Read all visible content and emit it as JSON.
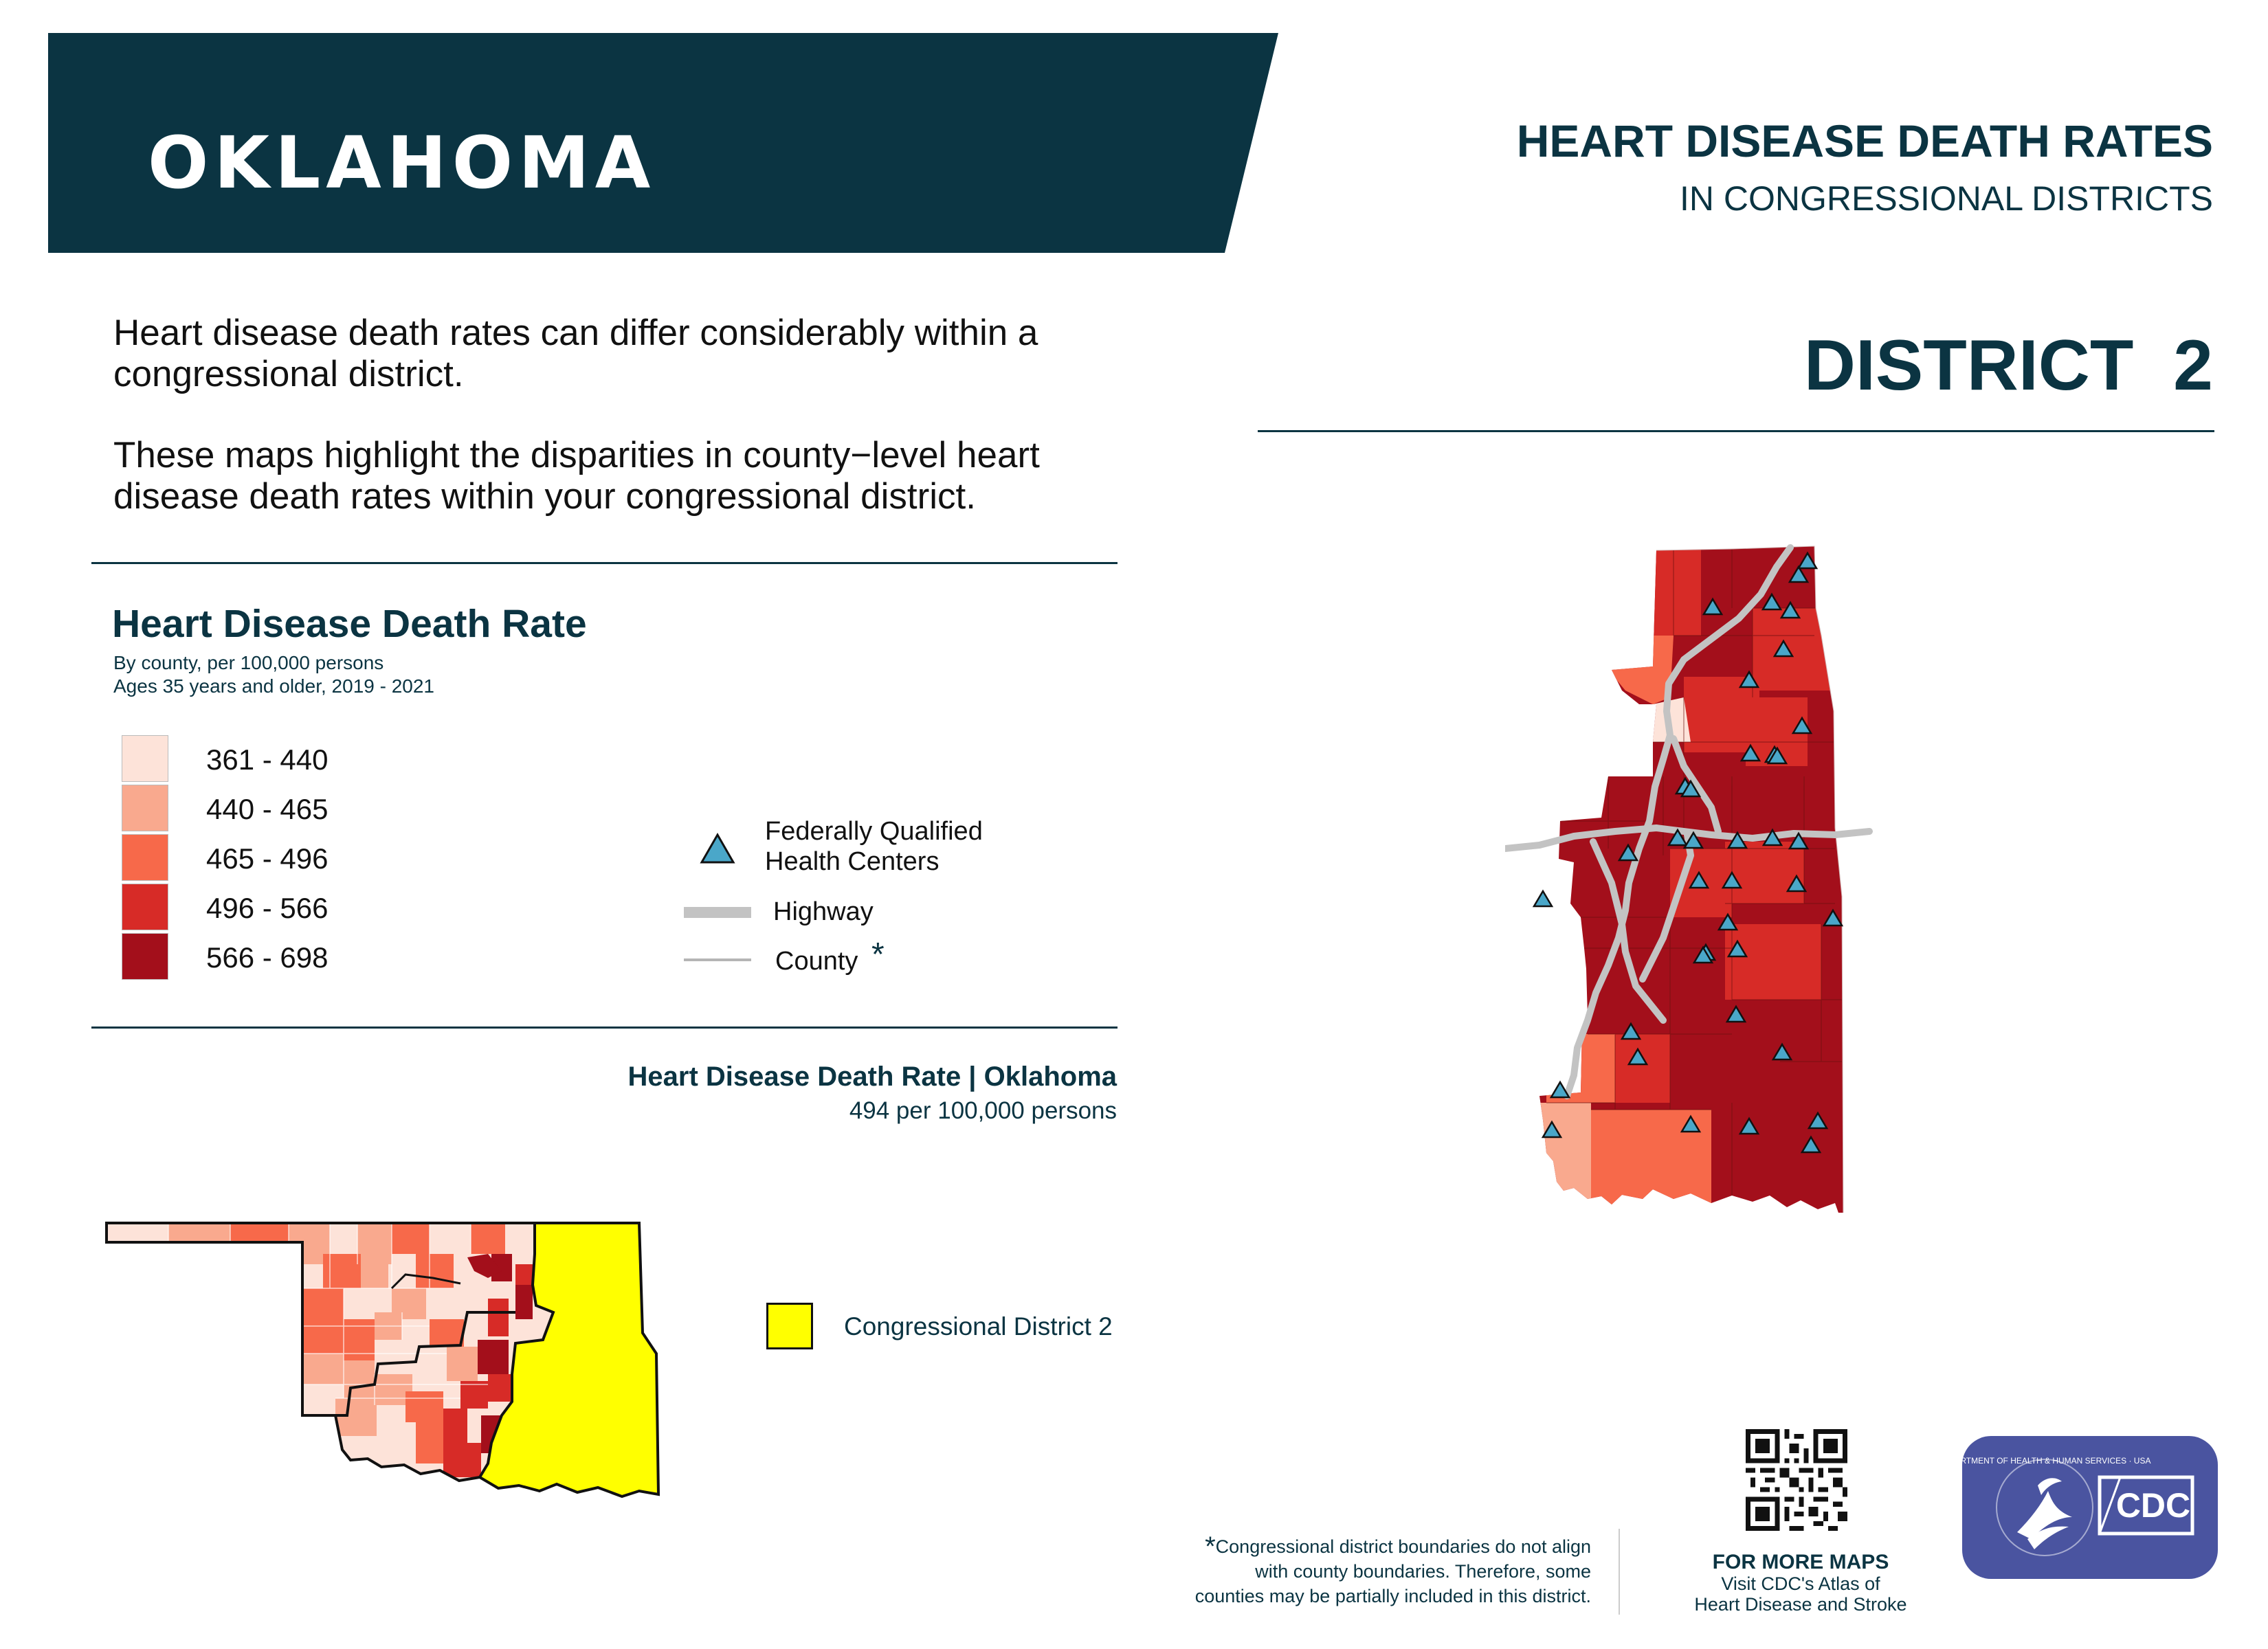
{
  "header": {
    "state_name": "OKLAHOMA",
    "title": "HEART DISEASE DEATH RATES",
    "subtitle": "IN CONGRESSIONAL DISTRICTS",
    "district": "DISTRICT  2"
  },
  "intro": {
    "paragraph_1": "Heart disease death rates can differ considerably within a congressional district.",
    "paragraph_2": "These maps highlight the disparities in county−level heart disease death rates within your congressional district."
  },
  "legend": {
    "title": "Heart Disease Death Rate",
    "subtitle_1": "By county, per 100,000 persons",
    "subtitle_2": "Ages 35 years and older, 2019 - 2021",
    "classes": [
      {
        "label": "361 - 440",
        "color": "#fde3d9"
      },
      {
        "label": "440 - 465",
        "color": "#f9a98e"
      },
      {
        "label": "465 - 496",
        "color": "#f7694a"
      },
      {
        "label": "496 - 566",
        "color": "#d72b27"
      },
      {
        "label": "566 - 698",
        "color": "#a30f1b"
      }
    ],
    "fqhc_label_1": "Federally Qualified",
    "fqhc_label_2": "Health Centers",
    "fqhc_color": "#4aa7c9",
    "highway_label": "Highway",
    "county_label": "County",
    "county_star": "*"
  },
  "state_rate": {
    "title": "Heart Disease Death Rate | Oklahoma",
    "value": "494 per 100,000 persons"
  },
  "state_map": {
    "district_color": "#ffff00",
    "district_label": "Congressional District 2"
  },
  "footnote": {
    "star": "*",
    "line_1": "Congressional district boundaries do not align",
    "line_2": "with county boundaries. Therefore, some",
    "line_3": "counties may be partially included in this district."
  },
  "more_maps": {
    "title": "FOR MORE MAPS",
    "line_1": "Visit CDC's Atlas of",
    "line_2": "Heart Disease and Stroke"
  },
  "logo": {
    "hhs_text": "DEPARTMENT OF HEALTH & HUMAN SERVICES · USA",
    "cdc_text": "CDC",
    "color": "#4a54a0"
  },
  "colors": {
    "navy": "#0b3442",
    "highway": "#c3c3c3"
  }
}
